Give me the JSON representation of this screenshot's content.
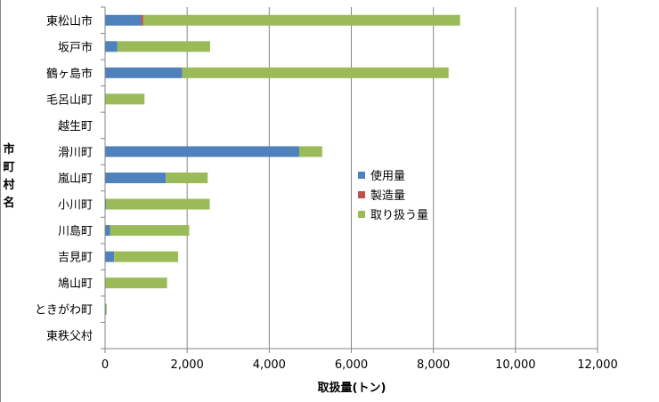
{
  "chart_data": {
    "type": "bar",
    "orientation": "horizontal",
    "stacked": true,
    "categories": [
      "東松山市",
      "坂戸市",
      "鶴ヶ島市",
      "毛呂山町",
      "越生町",
      "滑川町",
      "嵐山町",
      "小川町",
      "川島町",
      "吉見町",
      "鳩山町",
      "ときがわ町",
      "東秩父村"
    ],
    "series": [
      {
        "name": "使用量",
        "color": "#4f81bd",
        "values": [
          880,
          300,
          1880,
          0,
          0,
          4730,
          1480,
          30,
          120,
          220,
          0,
          20,
          0
        ]
      },
      {
        "name": "製造量",
        "color": "#c0504d",
        "values": [
          50,
          0,
          0,
          0,
          0,
          0,
          0,
          0,
          0,
          0,
          0,
          0,
          0
        ]
      },
      {
        "name": "取り扱う量",
        "color": "#9bbb59",
        "values": [
          7720,
          2260,
          6490,
          960,
          0,
          560,
          1020,
          2520,
          1930,
          1560,
          1510,
          20,
          0
        ]
      }
    ],
    "xlim": [
      0,
      12000
    ],
    "xticks": [
      "0",
      "2,000",
      "4,000",
      "6,000",
      "8,000",
      "10,000",
      "12,000"
    ],
    "xtick_values": [
      0,
      2000,
      4000,
      6000,
      8000,
      10000,
      12000
    ],
    "xlabel": "取扱量(トン)",
    "ylabel": "市町村名",
    "grid": "vertical",
    "legend_position": "center-right"
  }
}
